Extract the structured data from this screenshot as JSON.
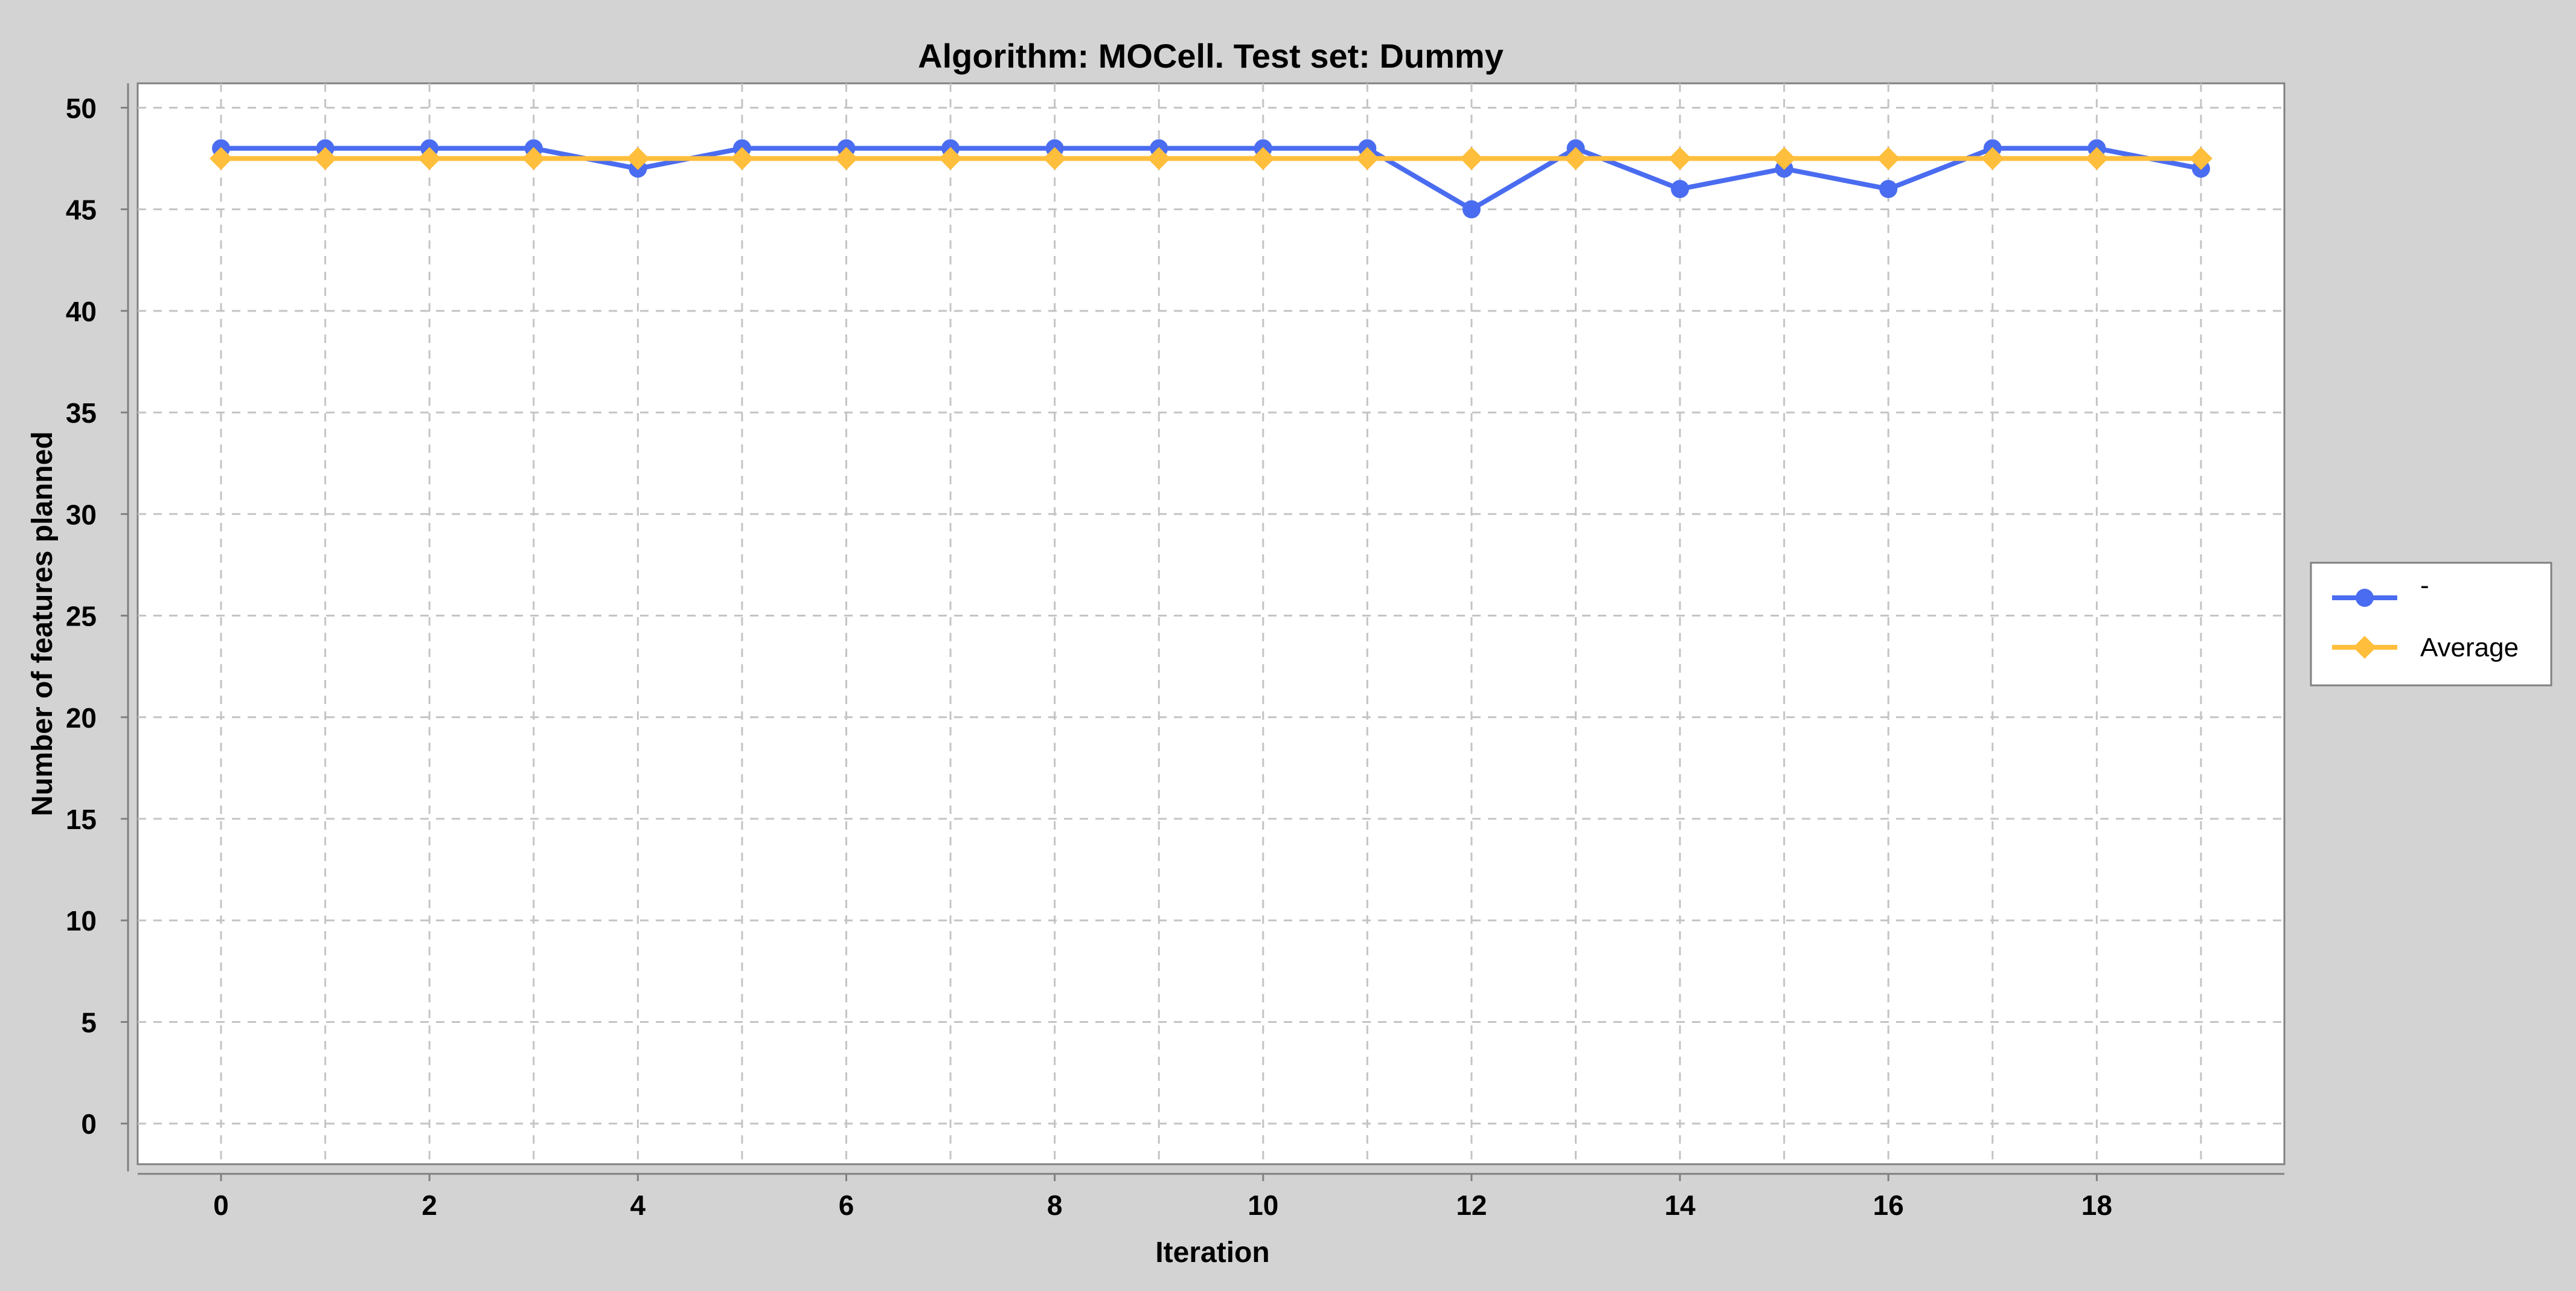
{
  "chart_data": {
    "type": "line",
    "title": "Algorithm: MOCell. Test set: Dummy",
    "xlabel": "Iteration",
    "ylabel": "Number of features planned",
    "x": [
      0,
      1,
      2,
      3,
      4,
      5,
      6,
      7,
      8,
      9,
      10,
      11,
      12,
      13,
      14,
      15,
      16,
      17,
      18,
      19
    ],
    "xlim": [
      -0.8,
      19.8
    ],
    "ylim": [
      -2,
      51.2
    ],
    "x_ticks": [
      "0",
      "2",
      "4",
      "6",
      "8",
      "10",
      "12",
      "14",
      "16",
      "18"
    ],
    "y_ticks": [
      "0",
      "5",
      "10",
      "15",
      "20",
      "25",
      "30",
      "35",
      "40",
      "45",
      "50"
    ],
    "grid": true,
    "legend_position": "right",
    "series": [
      {
        "name": "-",
        "color": "#4a6cf0",
        "marker": "circle",
        "values": [
          48,
          48,
          48,
          48,
          47,
          48,
          48,
          48,
          48,
          48,
          48,
          48,
          45,
          48,
          46,
          47,
          46,
          48,
          48,
          47
        ]
      },
      {
        "name": "Average",
        "color": "#ffbe3c",
        "marker": "diamond",
        "values": [
          47.5,
          47.5,
          47.5,
          47.5,
          47.5,
          47.5,
          47.5,
          47.5,
          47.5,
          47.5,
          47.5,
          47.5,
          47.5,
          47.5,
          47.5,
          47.5,
          47.5,
          47.5,
          47.5,
          47.5
        ]
      }
    ]
  }
}
